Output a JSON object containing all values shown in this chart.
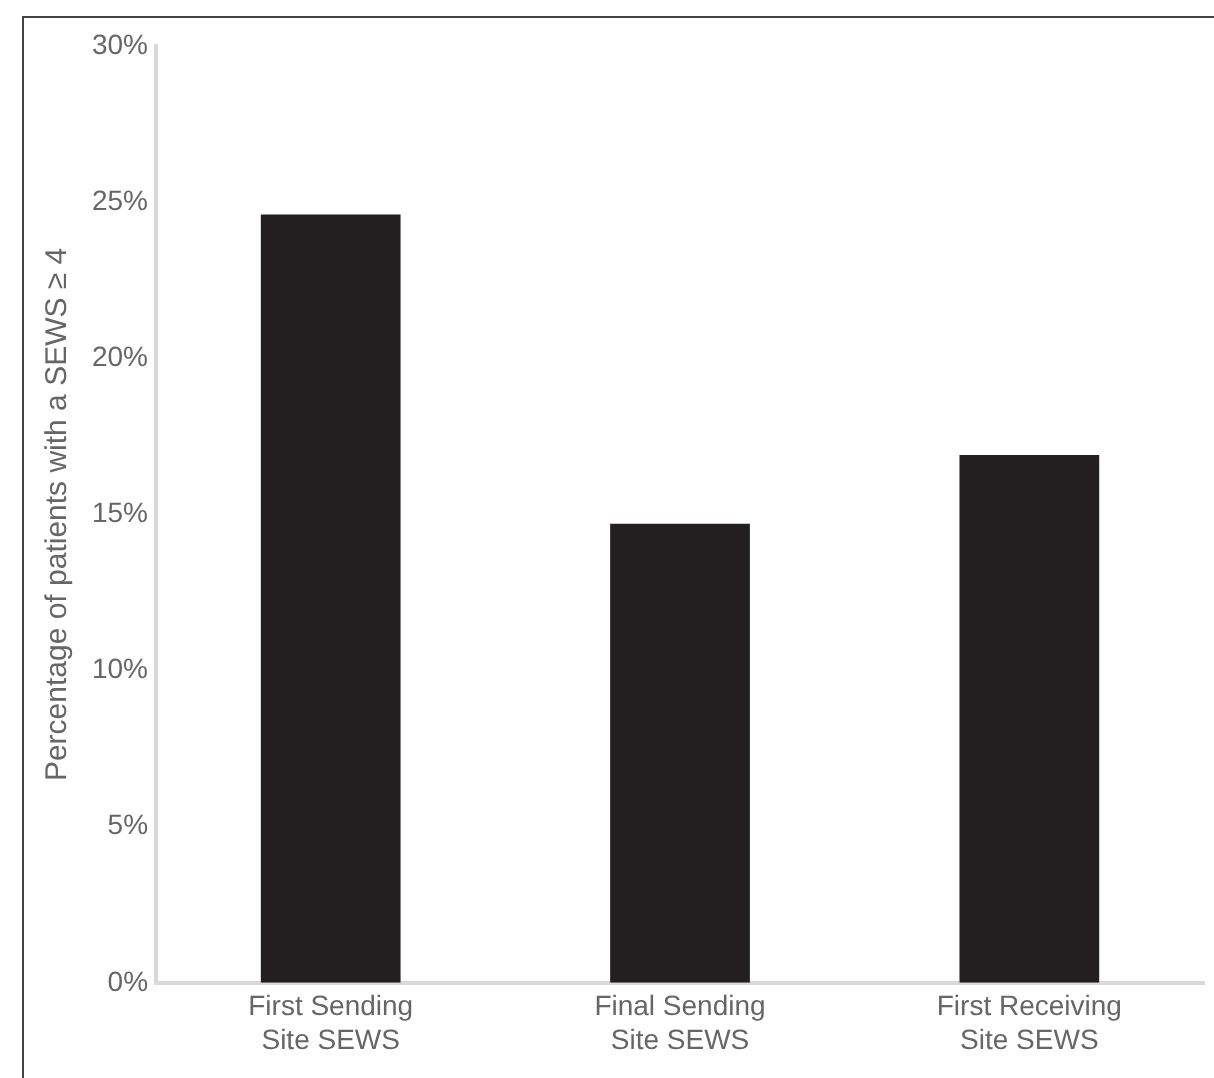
{
  "chart_data": {
    "type": "bar",
    "ylabel": "Percentage of patients with a SEWS ≥ 4",
    "categories": [
      "First Sending\nSite SEWS",
      "Final Sending\nSite SEWS",
      "First Receiving\nSite SEWS"
    ],
    "values": [
      24.6,
      14.7,
      16.9
    ],
    "color": "#231f20",
    "ylim": [
      0,
      30
    ],
    "yticks": [
      {
        "value": 0,
        "label": "0%"
      },
      {
        "value": 5,
        "label": "5%"
      },
      {
        "value": 10,
        "label": "10%"
      },
      {
        "value": 15,
        "label": "15%"
      },
      {
        "value": 20,
        "label": "20%"
      },
      {
        "value": 25,
        "label": "25%"
      },
      {
        "value": 30,
        "label": "30%"
      }
    ],
    "grid": false
  }
}
